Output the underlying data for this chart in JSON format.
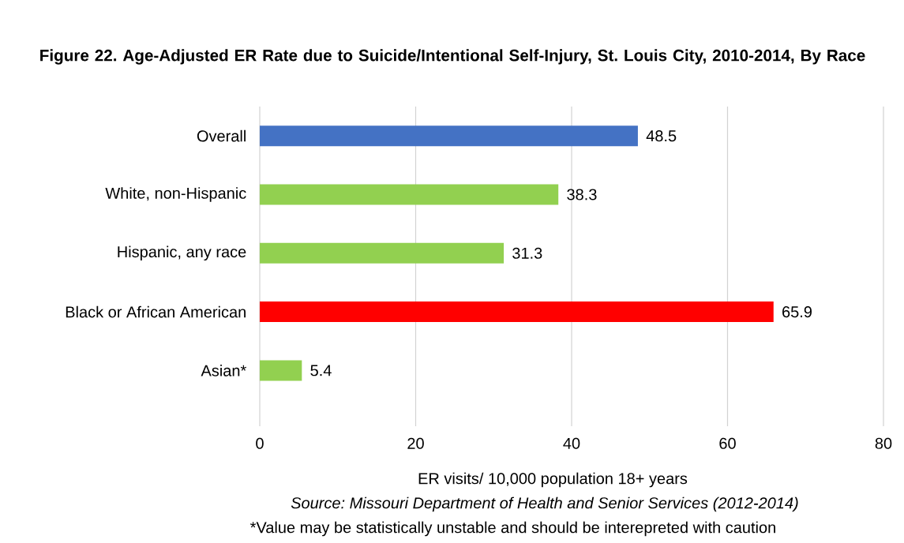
{
  "chart_data": {
    "type": "bar",
    "orientation": "horizontal",
    "title": "Figure 22. Age-Adjusted ER Rate due to Suicide/Intentional Self-Injury, St. Louis City, 2010-2014, By Race",
    "categories": [
      "Overall",
      "White, non-Hispanic",
      "Hispanic, any race",
      "Black or African American",
      "Asian*"
    ],
    "values": [
      48.5,
      38.3,
      31.3,
      65.9,
      5.4
    ],
    "colors": [
      "#4472c4",
      "#92d050",
      "#92d050",
      "#ff0000",
      "#92d050"
    ],
    "data_labels": true,
    "xlim": [
      0,
      80
    ],
    "xticks": [
      0,
      20,
      40,
      60,
      80
    ],
    "grid": "x",
    "xlabel": "ER visits/ 10,000 population 18+ years",
    "annotations": [
      "Source: Missouri Department of Health and Senior Services (2012-2014)",
      "*Value may be statistically unstable and should be interepreted with caution"
    ]
  }
}
